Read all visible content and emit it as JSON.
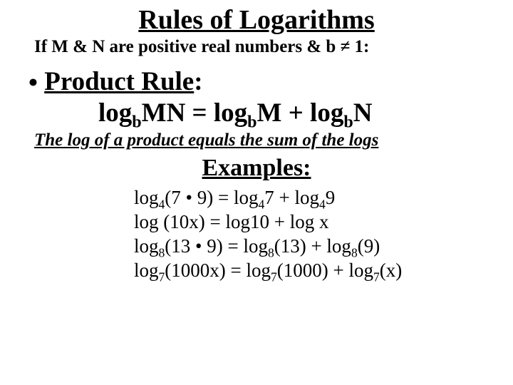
{
  "colors": {
    "background": "#ffffff",
    "text": "#000000"
  },
  "title": {
    "text": "Rules of Logarithms",
    "fontsize": 38,
    "underline": true
  },
  "subtitle": {
    "text": "If M & N are positive real numbers & b ≠ 1:",
    "fontsize": 25
  },
  "rule": {
    "bullet": "•",
    "name": "Product Rule",
    "colon": ":",
    "formula_parts": {
      "p1": "log",
      "b1": "b",
      "p2": "MN = log",
      "b2": "b",
      "p3": "M + log",
      "b3": "b",
      "p4": "N"
    },
    "fontsize": 37
  },
  "note": {
    "text": "The log of a product equals the sum of the logs",
    "fontsize": 25,
    "italic": true,
    "underline": true
  },
  "examples": {
    "heading": "Examples:",
    "heading_fontsize": 34,
    "fontsize": 27,
    "rows": [
      {
        "a1": "log",
        "s1": "4",
        "a2": "(7 • 9) = log",
        "s2": "4",
        "a3": "7 + log",
        "s3": "4",
        "a4": "9"
      },
      {
        "a1": "log (10x) = log10 + log x",
        "s1": "",
        "a2": "",
        "s2": "",
        "a3": "",
        "s3": "",
        "a4": ""
      },
      {
        "a1": "log",
        "s1": "8",
        "a2": "(13 • 9) = log",
        "s2": "8",
        "a3": "(13) + log",
        "s3": "8",
        "a4": "(9)"
      },
      {
        "a1": "log",
        "s1": "7",
        "a2": "(1000x) = log",
        "s2": "7",
        "a3": "(1000) + log",
        "s3": "7",
        "a4": "(x)"
      }
    ]
  }
}
